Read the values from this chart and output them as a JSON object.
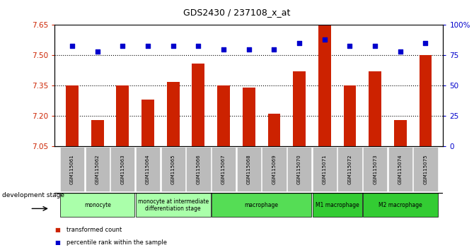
{
  "title": "GDS2430 / 237108_x_at",
  "samples": [
    "GSM115061",
    "GSM115062",
    "GSM115063",
    "GSM115064",
    "GSM115065",
    "GSM115066",
    "GSM115067",
    "GSM115068",
    "GSM115069",
    "GSM115070",
    "GSM115071",
    "GSM115072",
    "GSM115073",
    "GSM115074",
    "GSM115075"
  ],
  "bar_values": [
    7.35,
    7.18,
    7.35,
    7.28,
    7.37,
    7.46,
    7.35,
    7.34,
    7.21,
    7.42,
    7.65,
    7.35,
    7.42,
    7.18,
    7.5
  ],
  "dot_values": [
    83,
    78,
    83,
    83,
    83,
    83,
    80,
    80,
    80,
    85,
    88,
    83,
    83,
    78,
    85
  ],
  "bar_color": "#cc2200",
  "dot_color": "#0000cc",
  "bar_baseline": 7.05,
  "ylim_left": [
    7.05,
    7.65
  ],
  "ylim_right": [
    0,
    100
  ],
  "yticks_left": [
    7.05,
    7.2,
    7.35,
    7.5,
    7.65
  ],
  "yticks_right": [
    0,
    25,
    50,
    75,
    100
  ],
  "yticklabels_right": [
    "0",
    "25",
    "50",
    "75",
    "100%"
  ],
  "hlines": [
    7.2,
    7.35,
    7.5
  ],
  "groups": [
    {
      "label": "monocyte",
      "start": 0,
      "end": 3,
      "color": "#aaffaa"
    },
    {
      "label": "monocyte at intermediate\ndifferentiation stage",
      "start": 3,
      "end": 6,
      "color": "#aaffaa"
    },
    {
      "label": "macrophage",
      "start": 6,
      "end": 10,
      "color": "#55dd55"
    },
    {
      "label": "M1 macrophage",
      "start": 10,
      "end": 12,
      "color": "#33cc33"
    },
    {
      "label": "M2 macrophage",
      "start": 12,
      "end": 15,
      "color": "#33cc33"
    }
  ],
  "legend_items": [
    {
      "label": "transformed count",
      "color": "#cc2200"
    },
    {
      "label": "percentile rank within the sample",
      "color": "#0000cc"
    }
  ],
  "bg_color": "#ffffff",
  "axis_color_left": "#cc2200",
  "axis_color_right": "#0000cc",
  "tick_area_color": "#bbbbbb",
  "dev_stage_label": "development stage"
}
